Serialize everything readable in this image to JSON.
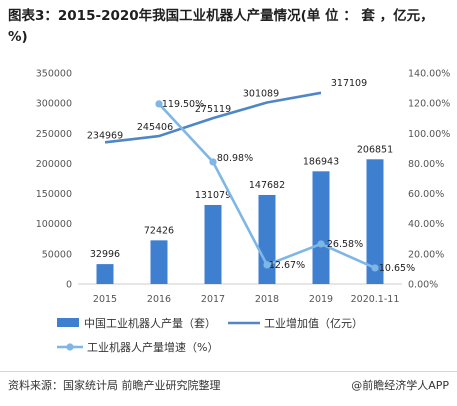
{
  "title": "图表3：2015-2020年我国工业机器人产量情况(单 位 ： 套 ，亿元，%)",
  "footer": {
    "source": "资料来源：国家统计局 前瞻产业研究院整理",
    "brand": "@前瞻经济学人APP"
  },
  "chart_data": {
    "type": "bar",
    "categories": [
      "2015",
      "2016",
      "2017",
      "2018",
      "2019",
      "2020.1-11"
    ],
    "left_axis": {
      "ylim": [
        0,
        350000
      ],
      "ticks": [
        "0",
        "50000",
        "100000",
        "150000",
        "200000",
        "250000",
        "300000",
        "350000"
      ]
    },
    "right_axis": {
      "ylim": [
        0,
        140
      ],
      "ticks": [
        "0.00%",
        "20.00%",
        "40.00%",
        "60.00%",
        "80.00%",
        "100.00%",
        "120.00%",
        "140.00%"
      ]
    },
    "series": [
      {
        "name": "中国工业机器人产量（套）",
        "type": "bar",
        "axis": "left",
        "values": [
          32996,
          72426,
          131079,
          147682,
          186943,
          206851
        ],
        "labels": [
          "32996",
          "72426",
          "131079",
          "147682",
          "186943",
          "206851"
        ]
      },
      {
        "name": "工业增加值（亿元）",
        "type": "line",
        "axis": "left",
        "values": [
          234969,
          245406,
          275119,
          301089,
          317109,
          null
        ],
        "labels": [
          "234969",
          "245406",
          "275119",
          "301089",
          "317109",
          ""
        ]
      },
      {
        "name": "工业机器人产量增速（%）",
        "type": "line",
        "axis": "right",
        "values": [
          null,
          119.5,
          80.98,
          12.67,
          26.58,
          10.65
        ],
        "labels": [
          "",
          "119.50%",
          "80.98%",
          "12.67%",
          "26.58%",
          "10.65%"
        ]
      }
    ],
    "colors": {
      "bar": "#3f7fd0",
      "value_line": "#4f86c6",
      "rate_line": "#7eb6e6",
      "axis_text": "#555555"
    },
    "grid": false,
    "legend": "bottom"
  }
}
